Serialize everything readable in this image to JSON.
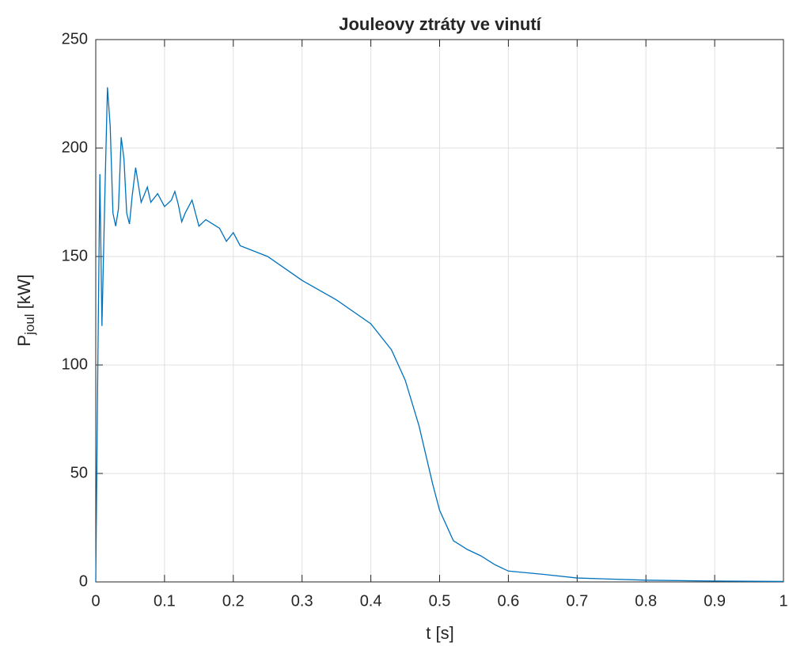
{
  "chart_data": {
    "type": "line",
    "title": "Jouleovy ztráty ve vinutí",
    "xlabel": "t [s]",
    "ylabel": "P",
    "ylabel_sub": "joul",
    "ylabel_unit": "[kW]",
    "x": [
      0,
      0.003,
      0.006,
      0.009,
      0.013,
      0.017,
      0.021,
      0.025,
      0.029,
      0.033,
      0.037,
      0.041,
      0.045,
      0.049,
      0.053,
      0.058,
      0.062,
      0.066,
      0.07,
      0.075,
      0.08,
      0.09,
      0.1,
      0.11,
      0.115,
      0.12,
      0.125,
      0.13,
      0.14,
      0.15,
      0.16,
      0.18,
      0.19,
      0.2,
      0.21,
      0.25,
      0.3,
      0.35,
      0.4,
      0.43,
      0.45,
      0.47,
      0.49,
      0.5,
      0.52,
      0.54,
      0.56,
      0.58,
      0.6,
      0.65,
      0.7,
      0.8,
      0.9,
      1
    ],
    "series": [
      {
        "name": "P_joul",
        "color": "#0072bd",
        "values": [
          0,
          100,
          188,
          118,
          175,
          228,
          210,
          170,
          164,
          172,
          205,
          195,
          170,
          165,
          178,
          191,
          183,
          175,
          178,
          182,
          175,
          179,
          173,
          176,
          180,
          174,
          166,
          170,
          176,
          164,
          167,
          163,
          157,
          161,
          155,
          150,
          139,
          130,
          119,
          107,
          93,
          72,
          45,
          33,
          19,
          15,
          12,
          8,
          5,
          3.5,
          1.8,
          0.8,
          0.4,
          0.2
        ]
      }
    ],
    "xlim": [
      0,
      1
    ],
    "xticks": [
      0,
      0.1,
      0.2,
      0.3,
      0.4,
      0.5,
      0.6,
      0.7,
      0.8,
      0.9,
      1
    ],
    "ylim": [
      0,
      250
    ],
    "yticks": [
      0,
      50,
      100,
      150,
      200,
      250
    ],
    "grid": true
  }
}
